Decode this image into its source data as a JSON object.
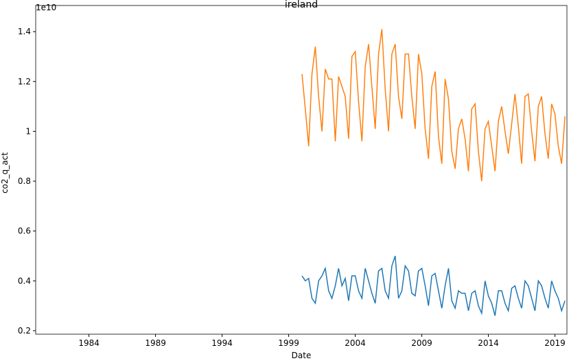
{
  "chart_data": {
    "type": "line",
    "title": "ireland",
    "x_label": "Date",
    "y_label": "co2_q_act",
    "y_offset_label": "1e10",
    "x": [
      2000,
      2000.25,
      2000.5,
      2000.75,
      2001,
      2001.25,
      2001.5,
      2001.75,
      2002,
      2002.25,
      2002.5,
      2002.75,
      2003,
      2003.25,
      2003.5,
      2003.75,
      2004,
      2004.25,
      2004.5,
      2004.75,
      2005,
      2005.25,
      2005.5,
      2005.75,
      2006,
      2006.25,
      2006.5,
      2006.75,
      2007,
      2007.25,
      2007.5,
      2007.75,
      2008,
      2008.25,
      2008.5,
      2008.75,
      2009,
      2009.25,
      2009.5,
      2009.75,
      2010,
      2010.25,
      2010.5,
      2010.75,
      2011,
      2011.25,
      2011.5,
      2011.75,
      2012,
      2012.25,
      2012.5,
      2012.75,
      2013,
      2013.25,
      2013.5,
      2013.75,
      2014,
      2014.25,
      2014.5,
      2014.75,
      2015,
      2015.25,
      2015.5,
      2015.75,
      2016,
      2016.25,
      2016.5,
      2016.75,
      2017,
      2017.25,
      2017.5,
      2017.75,
      2018,
      2018.25,
      2018.5,
      2018.75,
      2019,
      2019.25,
      2019.5,
      2019.75
    ],
    "series": [
      {
        "color": "#1f77b4",
        "values": [
          0.42,
          0.4,
          0.41,
          0.33,
          0.31,
          0.4,
          0.42,
          0.45,
          0.36,
          0.33,
          0.38,
          0.45,
          0.38,
          0.41,
          0.32,
          0.42,
          0.42,
          0.36,
          0.33,
          0.45,
          0.4,
          0.35,
          0.31,
          0.44,
          0.45,
          0.36,
          0.33,
          0.46,
          0.5,
          0.33,
          0.36,
          0.46,
          0.44,
          0.35,
          0.34,
          0.44,
          0.45,
          0.38,
          0.3,
          0.42,
          0.43,
          0.36,
          0.29,
          0.38,
          0.45,
          0.32,
          0.29,
          0.36,
          0.35,
          0.35,
          0.28,
          0.35,
          0.36,
          0.3,
          0.27,
          0.4,
          0.34,
          0.31,
          0.26,
          0.36,
          0.36,
          0.31,
          0.28,
          0.37,
          0.38,
          0.33,
          0.29,
          0.4,
          0.38,
          0.33,
          0.28,
          0.4,
          0.38,
          0.33,
          0.29,
          0.4,
          0.36,
          0.33,
          0.28,
          0.32
        ]
      },
      {
        "color": "#ff7f0e",
        "values": [
          1.23,
          1.09,
          0.94,
          1.23,
          1.34,
          1.14,
          1.0,
          1.25,
          1.21,
          1.21,
          0.96,
          1.22,
          1.18,
          1.14,
          0.97,
          1.3,
          1.32,
          1.12,
          0.96,
          1.26,
          1.35,
          1.18,
          1.01,
          1.31,
          1.41,
          1.17,
          1.0,
          1.31,
          1.35,
          1.14,
          1.05,
          1.31,
          1.31,
          1.14,
          1.01,
          1.31,
          1.23,
          1.01,
          0.89,
          1.18,
          1.24,
          0.98,
          0.87,
          1.21,
          1.13,
          0.92,
          0.85,
          1.01,
          1.05,
          0.97,
          0.84,
          1.09,
          1.11,
          0.92,
          0.8,
          1.01,
          1.04,
          0.94,
          0.84,
          1.04,
          1.1,
          1.0,
          0.91,
          1.03,
          1.15,
          1.02,
          0.87,
          1.14,
          1.15,
          1.0,
          0.88,
          1.1,
          1.14,
          0.99,
          0.89,
          1.11,
          1.07,
          0.94,
          0.87,
          1.06
        ]
      }
    ],
    "xlim": [
      1980,
      2019.9
    ],
    "xticks": [
      1984,
      1989,
      1994,
      1999,
      2004,
      2009,
      2014,
      2019
    ],
    "ylim": [
      0.186,
      1.505
    ],
    "yticks": [
      0.2,
      0.4,
      0.6,
      0.8,
      1.0,
      1.2,
      1.4
    ],
    "grid": false
  }
}
